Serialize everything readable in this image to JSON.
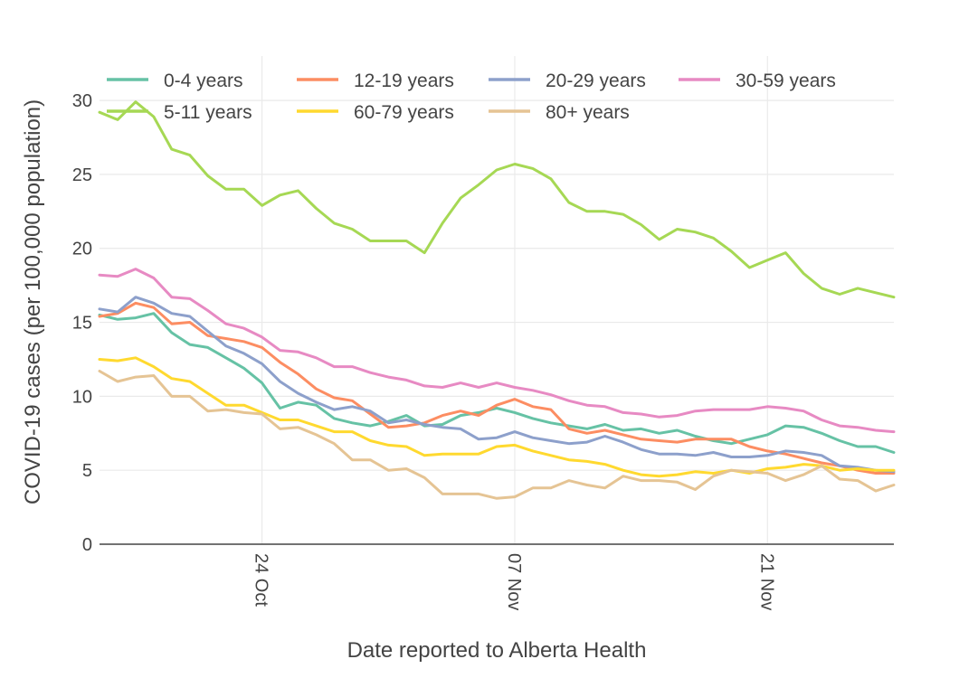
{
  "chart_data": {
    "type": "line",
    "title": "",
    "xlabel": "Date reported to Alberta Health",
    "ylabel": "COVID-19 cases (per 100,000 population)",
    "ylim": [
      0,
      33
    ],
    "yticks": [
      0,
      5,
      10,
      15,
      20,
      25,
      30
    ],
    "xticks": [
      {
        "day": 9,
        "label": "24 Oct"
      },
      {
        "day": 23,
        "label": "07 Nov"
      },
      {
        "day": 37,
        "label": "21 Nov"
      }
    ],
    "xlim": [
      0,
      44
    ],
    "grid": true,
    "legend_position": "top-left",
    "series": [
      {
        "name": "0-4 years",
        "color": "#66c2a5",
        "values": [
          15.5,
          15.2,
          15.3,
          15.6,
          14.3,
          13.5,
          13.3,
          12.6,
          11.9,
          10.9,
          9.2,
          9.6,
          9.4,
          8.5,
          8.2,
          8.0,
          8.3,
          8.7,
          8.0,
          8.1,
          8.7,
          8.9,
          9.2,
          8.9,
          8.5,
          8.2,
          8.0,
          7.8,
          8.1,
          7.7,
          7.8,
          7.5,
          7.7,
          7.3,
          7.0,
          6.8,
          7.1,
          7.4,
          8.0,
          7.9,
          7.5,
          7.0,
          6.6,
          6.6,
          6.2
        ]
      },
      {
        "name": "12-19 years",
        "color": "#fc8d62",
        "values": [
          15.4,
          15.6,
          16.3,
          16.0,
          14.9,
          15.0,
          14.1,
          13.9,
          13.7,
          13.3,
          12.3,
          11.5,
          10.5,
          9.9,
          9.7,
          8.8,
          7.9,
          8.0,
          8.2,
          8.7,
          9.0,
          8.7,
          9.4,
          9.8,
          9.3,
          9.1,
          7.8,
          7.5,
          7.7,
          7.4,
          7.1,
          7.0,
          6.9,
          7.1,
          7.1,
          7.1,
          6.6,
          6.3,
          6.1,
          5.8,
          5.5,
          5.3,
          5.0,
          4.8,
          4.8
        ]
      },
      {
        "name": "20-29 years",
        "color": "#8da0cb",
        "values": [
          15.9,
          15.7,
          16.7,
          16.3,
          15.6,
          15.4,
          14.4,
          13.4,
          12.9,
          12.2,
          11.0,
          10.2,
          9.6,
          9.1,
          9.3,
          9.0,
          8.2,
          8.4,
          8.1,
          7.9,
          7.8,
          7.1,
          7.2,
          7.6,
          7.2,
          7.0,
          6.8,
          6.9,
          7.3,
          6.9,
          6.4,
          6.1,
          6.1,
          6.0,
          6.2,
          5.9,
          5.9,
          6.0,
          6.3,
          6.2,
          6.0,
          5.3,
          5.2,
          5.0,
          4.9
        ]
      },
      {
        "name": "30-59 years",
        "color": "#e78ac3",
        "values": [
          18.2,
          18.1,
          18.6,
          18.0,
          16.7,
          16.6,
          15.8,
          14.9,
          14.6,
          14.0,
          13.1,
          13.0,
          12.6,
          12.0,
          12.0,
          11.6,
          11.3,
          11.1,
          10.7,
          10.6,
          10.9,
          10.6,
          10.9,
          10.6,
          10.4,
          10.1,
          9.7,
          9.4,
          9.3,
          8.9,
          8.8,
          8.6,
          8.7,
          9.0,
          9.1,
          9.1,
          9.1,
          9.3,
          9.2,
          9.0,
          8.4,
          8.0,
          7.9,
          7.7,
          7.6
        ]
      },
      {
        "name": "5-11 years",
        "color": "#a6d854",
        "values": [
          29.2,
          28.7,
          29.9,
          28.9,
          26.7,
          26.3,
          24.9,
          24.0,
          24.0,
          22.9,
          23.6,
          23.9,
          22.7,
          21.7,
          21.3,
          20.5,
          20.5,
          20.5,
          19.7,
          21.7,
          23.4,
          24.3,
          25.3,
          25.7,
          25.4,
          24.7,
          23.1,
          22.5,
          22.5,
          22.3,
          21.6,
          20.6,
          21.3,
          21.1,
          20.7,
          19.8,
          18.7,
          19.2,
          19.7,
          18.3,
          17.3,
          16.9,
          17.3,
          17.0,
          16.7
        ]
      },
      {
        "name": "60-79 years",
        "color": "#ffd92f",
        "values": [
          12.5,
          12.4,
          12.6,
          12.0,
          11.2,
          11.0,
          10.2,
          9.4,
          9.4,
          8.9,
          8.4,
          8.4,
          8.0,
          7.6,
          7.6,
          7.0,
          6.7,
          6.6,
          6.0,
          6.1,
          6.1,
          6.1,
          6.6,
          6.7,
          6.3,
          6.0,
          5.7,
          5.6,
          5.4,
          5.0,
          4.7,
          4.6,
          4.7,
          4.9,
          4.8,
          5.0,
          4.8,
          5.1,
          5.2,
          5.4,
          5.3,
          5.0,
          5.1,
          5.0,
          5.0
        ]
      },
      {
        "name": "80+ years",
        "color": "#e5c494",
        "values": [
          11.7,
          11.0,
          11.3,
          11.4,
          10.0,
          10.0,
          9.0,
          9.1,
          8.9,
          8.8,
          7.8,
          7.9,
          7.4,
          6.8,
          5.7,
          5.7,
          5.0,
          5.1,
          4.5,
          3.4,
          3.4,
          3.4,
          3.1,
          3.2,
          3.8,
          3.8,
          4.3,
          4.0,
          3.8,
          4.6,
          4.3,
          4.3,
          4.2,
          3.7,
          4.6,
          5.0,
          4.9,
          4.8,
          4.3,
          4.7,
          5.3,
          4.4,
          4.3,
          3.6,
          4.0
        ]
      }
    ]
  }
}
